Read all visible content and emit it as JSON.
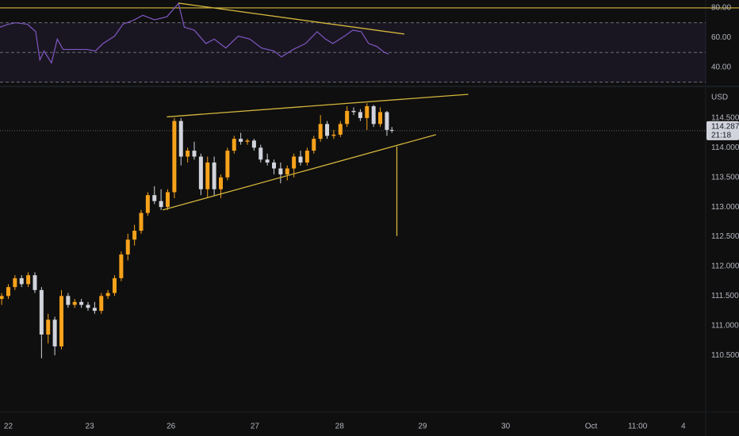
{
  "chart_data": [
    {
      "type": "line",
      "name": "rsi",
      "xlim": [
        0,
        8.5
      ],
      "ylim": [
        29.3,
        85.3
      ],
      "yticks": [
        {
          "value": 80,
          "label": "80.00"
        },
        {
          "value": 60,
          "label": "60.00"
        },
        {
          "value": 40,
          "label": "40.00"
        }
      ],
      "levels": [
        70,
        50,
        30
      ],
      "hline": 80,
      "trendlines": [
        {
          "points": [
            [
              2.15,
              83.2
            ],
            [
              4.87,
              62.4
            ]
          ]
        }
      ],
      "series": [
        {
          "color": "#7e57c2",
          "x": [
            0,
            0.1,
            0.19,
            0.33,
            0.43,
            0.48,
            0.53,
            0.62,
            0.69,
            0.76,
            0.91,
            1.05,
            1.15,
            1.24,
            1.38,
            1.48,
            1.62,
            1.72,
            1.86,
            2.01,
            2.15,
            2.22,
            2.34,
            2.48,
            2.58,
            2.72,
            2.87,
            3.01,
            3.15,
            3.3,
            3.39,
            3.53,
            3.68,
            3.82,
            3.92,
            4.01,
            4.15,
            4.25,
            4.35,
            4.44,
            4.54,
            4.63,
            4.68
          ],
          "values": [
            67,
            69,
            70,
            69,
            64,
            45,
            51,
            43,
            59,
            52,
            52,
            52,
            51,
            56,
            61,
            69,
            72,
            75,
            72,
            74,
            83,
            67,
            65,
            56,
            59,
            53,
            61,
            59,
            53,
            51,
            47,
            52,
            56,
            64,
            59,
            56,
            61,
            65,
            64,
            56,
            54,
            50,
            49
          ]
        }
      ]
    },
    {
      "type": "candlestick",
      "currency": "USD",
      "last_price": 114.287,
      "countdown": "21:18",
      "up_color": "#f7a21b",
      "down_color": "#d1d4dc",
      "trend_color": "#d4b63c",
      "xlim": [
        0,
        8.5
      ],
      "ylim": [
        110.048,
        114.98
      ],
      "xticks": [
        {
          "value": 0.1,
          "label": "22"
        },
        {
          "value": 1.08,
          "label": "23"
        },
        {
          "value": 2.06,
          "label": "26"
        },
        {
          "value": 3.07,
          "label": "27"
        },
        {
          "value": 4.09,
          "label": "28"
        },
        {
          "value": 5.09,
          "label": "29"
        },
        {
          "value": 6.09,
          "label": "30"
        },
        {
          "value": 7.12,
          "label": "Oct"
        },
        {
          "value": 7.68,
          "label": "11:00"
        },
        {
          "value": 8.23,
          "label": "4"
        }
      ],
      "yticks": [
        {
          "value": 114.5,
          "label": "114.500"
        },
        {
          "value": 114,
          "label": "114.000"
        },
        {
          "value": 113.5,
          "label": "113.500"
        },
        {
          "value": 113,
          "label": "113.000"
        },
        {
          "value": 112.5,
          "label": "112.500"
        },
        {
          "value": 112,
          "label": "112.000"
        },
        {
          "value": 111.5,
          "label": "111.500"
        },
        {
          "value": 111,
          "label": "111.000"
        },
        {
          "value": 110.5,
          "label": "110.500"
        }
      ],
      "trendlines": [
        {
          "points": [
            [
              2.01,
              114.52
            ],
            [
              5.64,
              114.9
            ]
          ]
        },
        {
          "points": [
            [
              1.96,
              112.95
            ],
            [
              5.25,
              114.22
            ]
          ]
        },
        {
          "points": [
            [
              4.78,
              114.02
            ],
            [
              4.78,
              112.51
            ]
          ]
        }
      ],
      "x": [
        0.02,
        0.1,
        0.18,
        0.26,
        0.34,
        0.42,
        0.5,
        0.58,
        0.66,
        0.74,
        0.82,
        0.9,
        0.98,
        1.06,
        1.14,
        1.22,
        1.3,
        1.38,
        1.46,
        1.54,
        1.62,
        1.7,
        1.78,
        1.86,
        1.94,
        2.02,
        2.1,
        2.18,
        2.26,
        2.34,
        2.42,
        2.5,
        2.58,
        2.66,
        2.74,
        2.82,
        2.9,
        2.98,
        3.06,
        3.14,
        3.22,
        3.3,
        3.38,
        3.46,
        3.54,
        3.62,
        3.7,
        3.78,
        3.86,
        3.94,
        4.02,
        4.1,
        4.18,
        4.26,
        4.34,
        4.42,
        4.5,
        4.58,
        4.66,
        4.72
      ],
      "open": [
        111.45,
        111.5,
        111.65,
        111.8,
        111.7,
        111.85,
        111.6,
        110.85,
        111.1,
        110.65,
        111.5,
        111.35,
        111.4,
        111.35,
        111.3,
        111.25,
        111.5,
        111.55,
        111.8,
        112.2,
        112.45,
        112.6,
        112.9,
        113.2,
        113.1,
        113.0,
        113.25,
        114.45,
        113.85,
        113.95,
        113.85,
        113.3,
        113.75,
        113.3,
        113.5,
        113.95,
        114.15,
        114.1,
        114.12,
        114.0,
        113.8,
        113.75,
        113.65,
        113.55,
        113.65,
        113.85,
        113.75,
        113.95,
        114.15,
        114.4,
        114.2,
        114.22,
        114.4,
        114.62,
        114.6,
        114.5,
        114.7,
        114.4,
        114.6,
        114.3
      ],
      "high": [
        111.55,
        111.7,
        111.85,
        111.85,
        111.9,
        111.9,
        111.65,
        111.2,
        111.15,
        111.6,
        111.55,
        111.45,
        111.45,
        111.4,
        111.4,
        111.55,
        111.6,
        111.85,
        112.25,
        112.55,
        112.7,
        112.95,
        113.25,
        113.35,
        113.3,
        113.3,
        114.5,
        114.5,
        114.0,
        114.1,
        113.9,
        113.85,
        113.85,
        113.55,
        114.0,
        114.2,
        114.25,
        114.15,
        114.15,
        114.05,
        113.9,
        113.8,
        113.75,
        113.7,
        113.9,
        113.95,
        114.0,
        114.2,
        114.55,
        114.45,
        114.3,
        114.45,
        114.7,
        114.68,
        114.65,
        114.75,
        114.72,
        114.68,
        114.62,
        114.35
      ],
      "low": [
        111.35,
        111.45,
        111.6,
        111.65,
        111.65,
        111.55,
        110.45,
        110.7,
        110.5,
        110.6,
        111.3,
        111.3,
        111.3,
        111.25,
        111.2,
        111.2,
        111.45,
        111.5,
        111.75,
        112.1,
        112.35,
        112.55,
        112.85,
        113.05,
        112.95,
        112.95,
        113.15,
        113.7,
        113.75,
        113.8,
        113.2,
        113.15,
        113.2,
        113.15,
        113.45,
        113.9,
        114.05,
        114.05,
        113.95,
        113.75,
        113.7,
        113.55,
        113.4,
        113.45,
        113.5,
        113.7,
        113.7,
        113.9,
        114.1,
        114.15,
        114.15,
        114.18,
        114.35,
        114.55,
        114.45,
        114.3,
        114.35,
        114.35,
        114.2,
        114.25
      ],
      "close": [
        111.5,
        111.65,
        111.8,
        111.7,
        111.85,
        111.6,
        110.85,
        111.1,
        110.65,
        111.5,
        111.35,
        111.4,
        111.35,
        111.3,
        111.25,
        111.5,
        111.55,
        111.8,
        112.2,
        112.45,
        112.6,
        112.9,
        113.2,
        113.1,
        113.0,
        113.25,
        114.45,
        113.85,
        113.95,
        113.85,
        113.3,
        113.75,
        113.3,
        113.5,
        113.95,
        114.15,
        114.1,
        114.12,
        114.0,
        113.8,
        113.75,
        113.65,
        113.55,
        113.65,
        113.85,
        113.75,
        113.95,
        114.15,
        114.4,
        114.2,
        114.22,
        114.4,
        114.62,
        114.6,
        114.5,
        114.7,
        114.4,
        114.6,
        114.3,
        114.287
      ]
    }
  ]
}
